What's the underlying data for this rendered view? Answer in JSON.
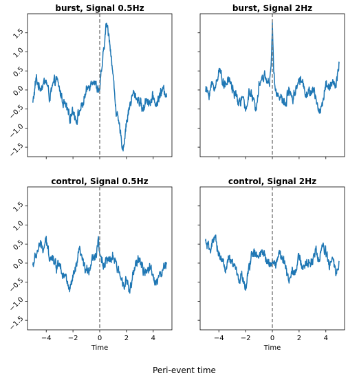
{
  "figure": {
    "supxlabel": "Peri-event time"
  },
  "chart_data": [
    {
      "type": "line",
      "title": "burst, Signal 0.5Hz",
      "xlabel": "",
      "ylabel": "",
      "xlim": [
        -5.4,
        5.4
      ],
      "ylim": [
        -1.75,
        2.0
      ],
      "xticks": [
        -4,
        -2,
        0,
        2,
        4
      ],
      "yticks": [
        -1.5,
        -1.0,
        -0.5,
        0.0,
        0.5,
        1.0,
        1.5
      ],
      "ytick_labels": [
        "−1.5",
        "−1.0",
        "−0.5",
        "0.0",
        "0.5",
        "1.0",
        "1.5"
      ],
      "vline_x": 0,
      "line_color": "#1f77b4",
      "series": [
        {
          "x": [
            -5,
            -4.75,
            -4.5,
            -4.25,
            -4,
            -3.75,
            -3.5,
            -3.25,
            -3,
            -2.75,
            -2.5,
            -2.25,
            -2,
            -1.75,
            -1.5,
            -1.25,
            -1,
            -0.75,
            -0.5,
            -0.25,
            0,
            0.25,
            0.5,
            0.75,
            1,
            1.25,
            1.5,
            1.75,
            2,
            2.25,
            2.5,
            2.75,
            3,
            3.25,
            3.5,
            3.75,
            4,
            4.25,
            4.5,
            4.75,
            5
          ],
          "y": [
            -0.35,
            0.3,
            0.05,
            0.15,
            0.25,
            -0.2,
            0.1,
            0.3,
            0.0,
            -0.3,
            -0.45,
            -0.75,
            -0.5,
            -0.8,
            -0.55,
            -0.35,
            -0.05,
            0.15,
            0.3,
            0.1,
            0.0,
            0.85,
            1.75,
            1.3,
            0.35,
            -0.6,
            -1.05,
            -1.55,
            -0.85,
            -0.4,
            -0.1,
            -0.2,
            -0.3,
            -0.55,
            -0.2,
            -0.35,
            -0.2,
            -0.4,
            -0.1,
            0.0,
            -0.1
          ]
        }
      ]
    },
    {
      "type": "line",
      "title": "burst, Signal 2Hz",
      "xlabel": "",
      "ylabel": "",
      "xlim": [
        -5.4,
        5.4
      ],
      "ylim": [
        -1.75,
        2.0
      ],
      "xticks": [
        -4,
        -2,
        0,
        2,
        4
      ],
      "yticks": [
        -1.5,
        -1.0,
        -0.5,
        0.0,
        0.5,
        1.0,
        1.5
      ],
      "vline_x": 0,
      "line_color": "#1f77b4",
      "series": [
        {
          "x": [
            -5,
            -4.75,
            -4.5,
            -4.25,
            -4,
            -3.75,
            -3.5,
            -3.25,
            -3,
            -2.75,
            -2.5,
            -2.25,
            -2,
            -1.75,
            -1.5,
            -1.25,
            -1,
            -0.75,
            -0.5,
            -0.25,
            -0.1,
            0,
            0.1,
            0.25,
            0.5,
            0.75,
            1,
            1.25,
            1.5,
            1.75,
            2,
            2.25,
            2.5,
            2.75,
            3,
            3.25,
            3.5,
            3.75,
            4,
            4.25,
            4.5,
            4.75,
            5
          ],
          "y": [
            0.0,
            -0.1,
            0.15,
            0.05,
            0.55,
            0.3,
            0.1,
            0.3,
            0.05,
            -0.15,
            -0.35,
            -0.2,
            -0.55,
            -0.05,
            -0.2,
            -0.5,
            0.15,
            0.3,
            0.4,
            0.1,
            0.5,
            1.75,
            0.5,
            -0.1,
            -0.1,
            -0.3,
            -0.35,
            0.05,
            -0.2,
            0.0,
            0.3,
            0.2,
            -0.05,
            -0.1,
            0.0,
            -0.2,
            -0.6,
            -0.35,
            0.15,
            0.1,
            0.2,
            0.05,
            0.75
          ]
        }
      ]
    },
    {
      "type": "line",
      "title": "control, Signal 0.5Hz",
      "xlabel": "Time",
      "ylabel": "",
      "xlim": [
        -5.4,
        5.4
      ],
      "ylim": [
        -1.75,
        2.0
      ],
      "xticks": [
        -4,
        -2,
        0,
        2,
        4
      ],
      "xtick_labels": [
        "−4",
        "−2",
        "0",
        "2",
        "4"
      ],
      "yticks": [
        -1.5,
        -1.0,
        -0.5,
        0.0,
        0.5,
        1.0,
        1.5
      ],
      "ytick_labels": [
        "−1.5",
        "−1.0",
        "−0.5",
        "0.0",
        "0.5",
        "1.0",
        "1.5"
      ],
      "vline_x": 0,
      "line_color": "#1f77b4",
      "series": [
        {
          "x": [
            -5,
            -4.75,
            -4.5,
            -4.25,
            -4,
            -3.75,
            -3.5,
            -3.25,
            -3,
            -2.75,
            -2.5,
            -2.25,
            -2,
            -1.75,
            -1.5,
            -1.25,
            -1,
            -0.75,
            -0.5,
            -0.25,
            -0.1,
            0,
            0.25,
            0.5,
            0.75,
            1,
            1.25,
            1.5,
            1.75,
            2,
            2.25,
            2.5,
            2.75,
            3,
            3.25,
            3.5,
            3.75,
            4,
            4.25,
            4.5,
            4.75,
            5
          ],
          "y": [
            -0.05,
            0.2,
            0.5,
            0.35,
            0.55,
            0.2,
            0.15,
            -0.1,
            0.05,
            -0.3,
            -0.4,
            -0.75,
            -0.4,
            -0.1,
            0.35,
            0.0,
            -0.25,
            -0.1,
            0.15,
            0.25,
            0.7,
            0.2,
            -0.05,
            0.1,
            0.0,
            0.2,
            -0.1,
            -0.3,
            -0.5,
            -0.45,
            -0.75,
            -0.35,
            0.05,
            0.1,
            -0.2,
            -0.3,
            -0.05,
            -0.35,
            -0.5,
            -0.3,
            -0.2,
            0.0
          ]
        }
      ]
    },
    {
      "type": "line",
      "title": "control, Signal 2Hz",
      "xlabel": "Time",
      "ylabel": "",
      "xlim": [
        -5.4,
        5.4
      ],
      "ylim": [
        -1.75,
        2.0
      ],
      "xticks": [
        -4,
        -2,
        0,
        2,
        4
      ],
      "xtick_labels": [
        "−4",
        "−2",
        "0",
        "2",
        "4"
      ],
      "yticks": [
        -1.5,
        -1.0,
        -0.5,
        0.0,
        0.5,
        1.0,
        1.5
      ],
      "vline_x": 0,
      "line_color": "#1f77b4",
      "series": [
        {
          "x": [
            -5,
            -4.75,
            -4.5,
            -4.25,
            -4,
            -3.75,
            -3.5,
            -3.25,
            -3,
            -2.75,
            -2.5,
            -2.25,
            -2,
            -1.75,
            -1.5,
            -1.25,
            -1,
            -0.75,
            -0.5,
            -0.25,
            0,
            0.25,
            0.5,
            0.75,
            1,
            1.25,
            1.5,
            1.75,
            2,
            2.25,
            2.5,
            2.75,
            3,
            3.25,
            3.5,
            3.75,
            4,
            4.25,
            4.5,
            4.75,
            5
          ],
          "y": [
            0.55,
            0.35,
            0.5,
            0.6,
            0.25,
            0.1,
            -0.2,
            0.1,
            0.0,
            -0.15,
            -0.45,
            -0.3,
            -0.75,
            -0.1,
            0.3,
            0.2,
            0.15,
            0.3,
            0.1,
            0.0,
            0.05,
            -0.05,
            0.3,
            0.1,
            -0.1,
            -0.45,
            -0.15,
            -0.2,
            0.15,
            -0.1,
            -0.05,
            0.0,
            0.1,
            0.3,
            0.1,
            0.45,
            0.3,
            -0.1,
            0.15,
            -0.3,
            -0.05
          ]
        }
      ]
    }
  ]
}
